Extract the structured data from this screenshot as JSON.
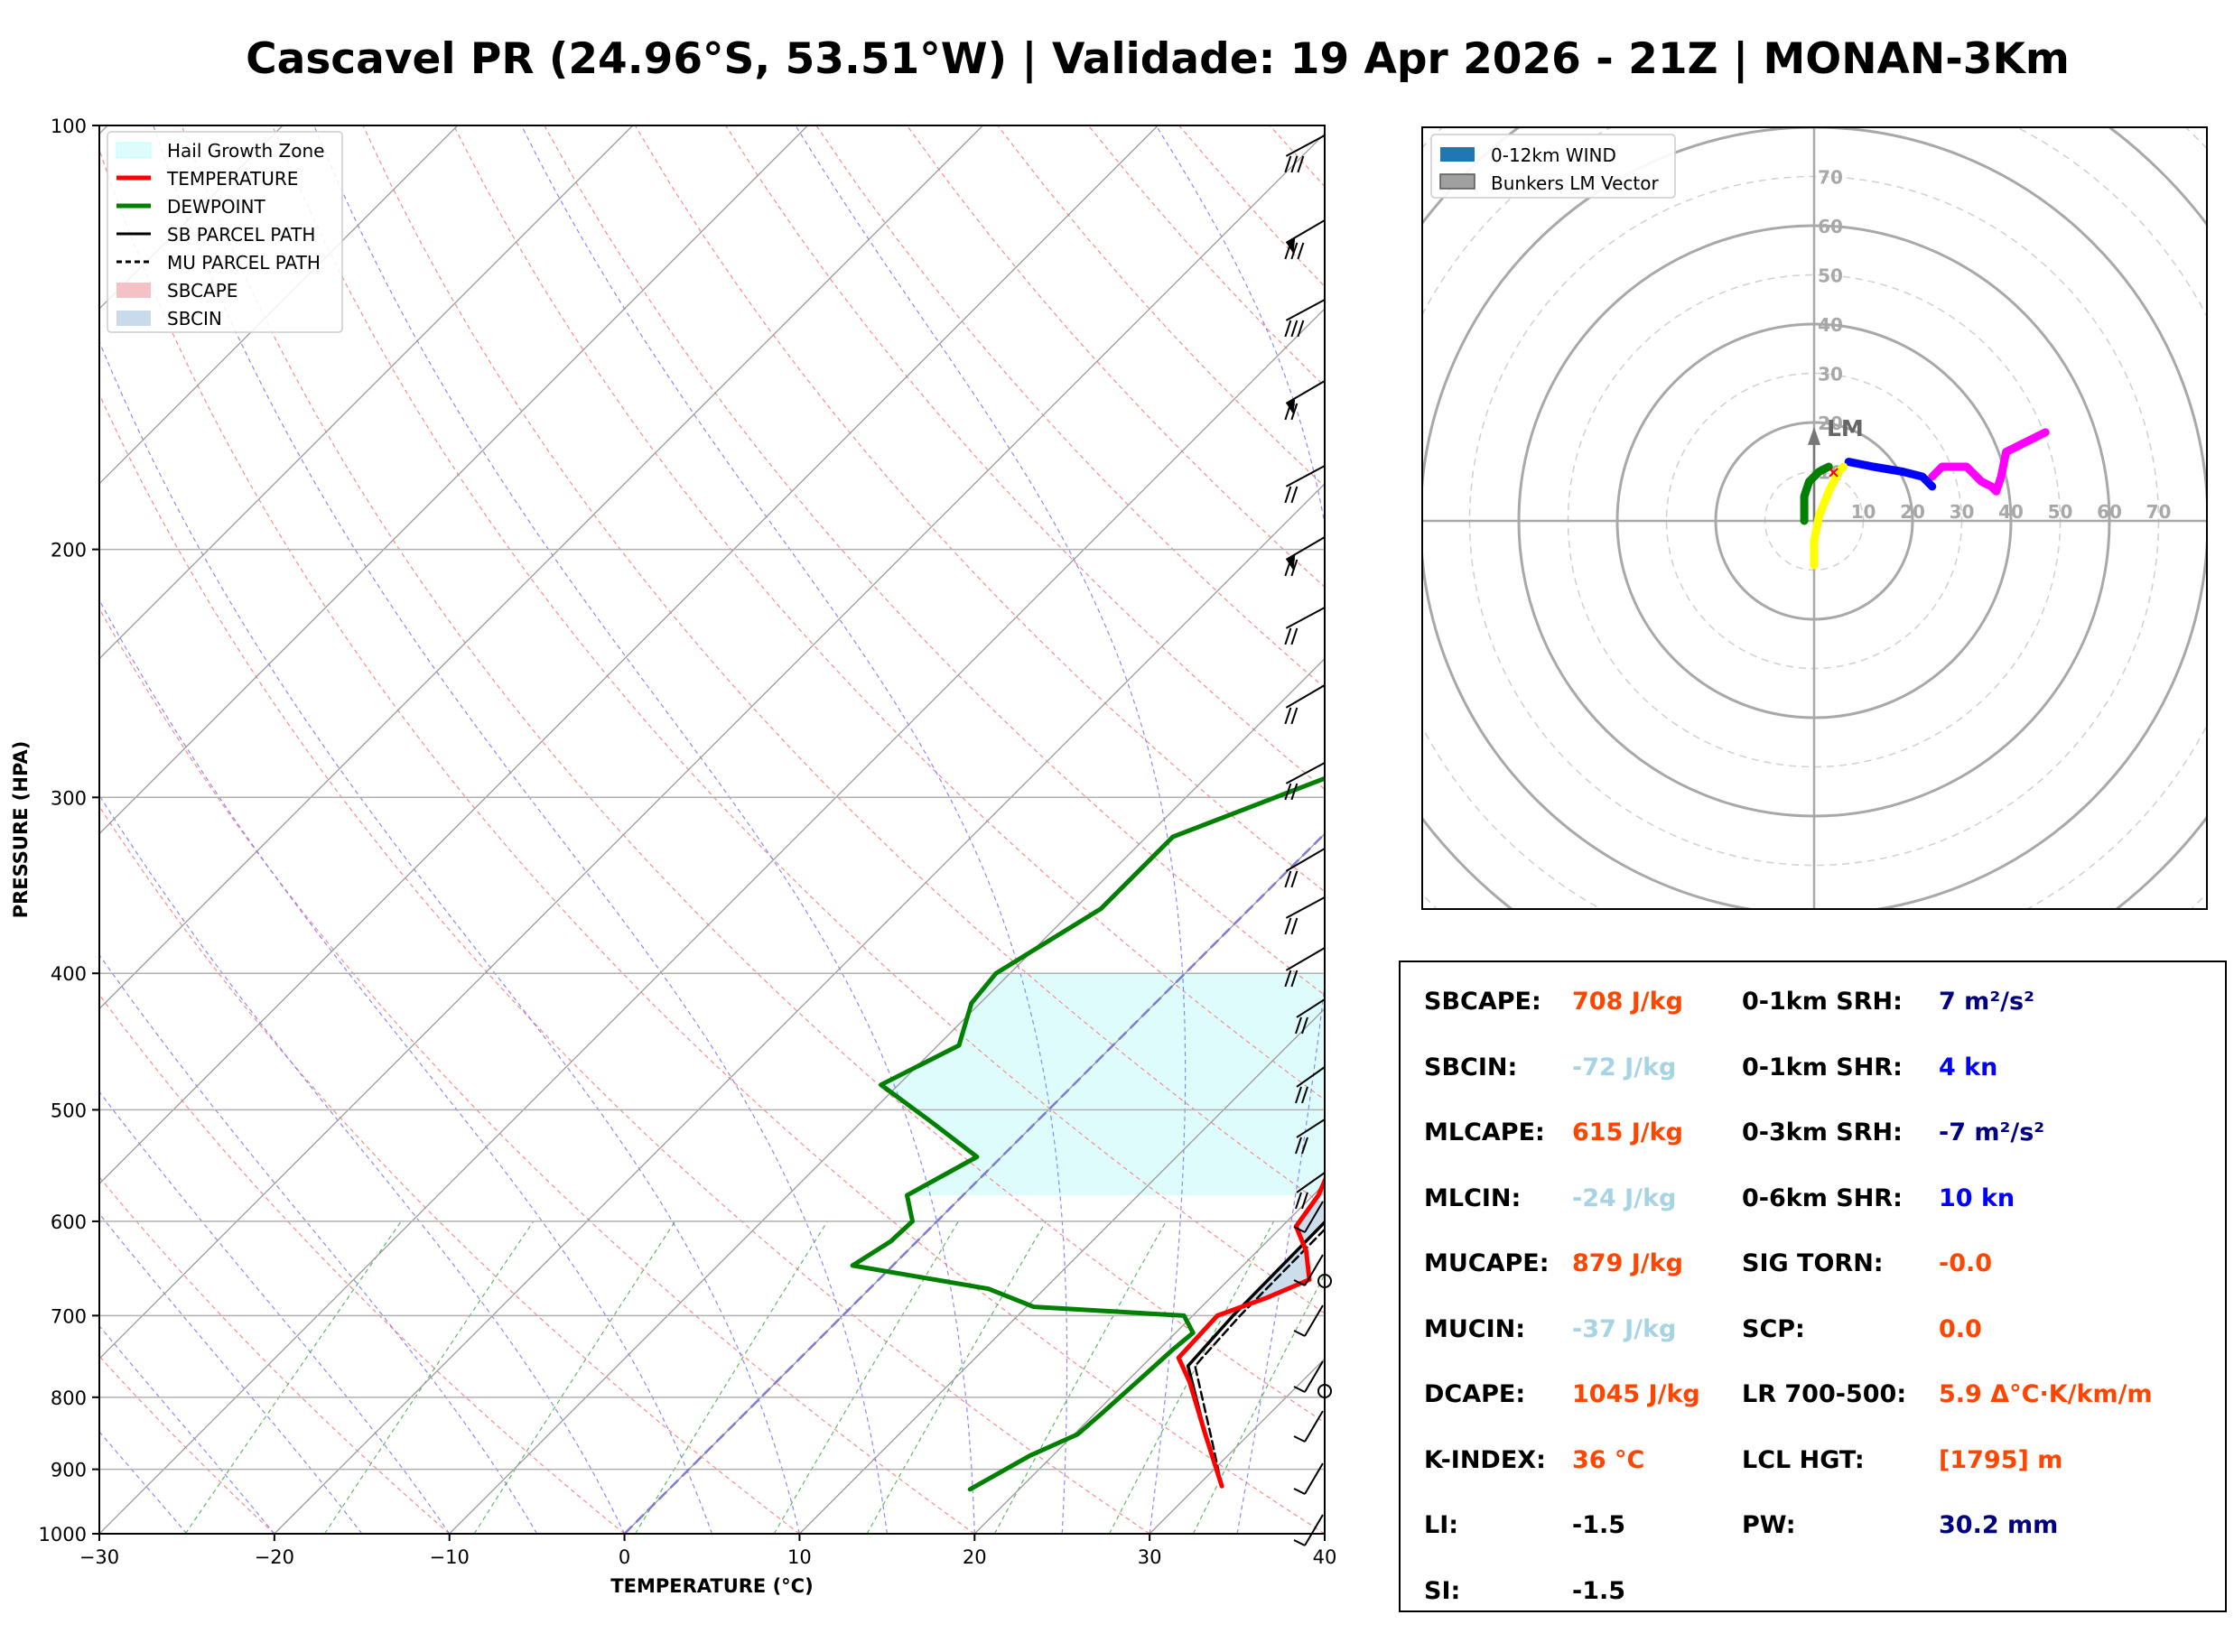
{
  "title": "Cascavel PR (24.96°S, 53.51°W) | Validade: 19 Apr 2026 - 21Z | MONAN-3Km",
  "colors": {
    "temperature": "#ff0000",
    "dewpoint": "#008000",
    "sbcape": "#f4c2c6",
    "sbcin": "#c9dbea",
    "hail": "#dffcfc",
    "value_orange": "#ff4500",
    "value_lightblue": "#a6d4e6",
    "value_navy": "#000080",
    "value_blue": "#0000ff"
  },
  "chart_data": [
    {
      "type": "skew-t",
      "xlabel": "TEMPERATURE (°C)",
      "ylabel": "PRESSURE (HPA)",
      "xlim": [
        -30,
        40
      ],
      "ylim": [
        1000,
        100
      ],
      "x_ticks": [
        "−30",
        "−20",
        "−10",
        "0",
        "10",
        "20",
        "30",
        "40"
      ],
      "y_ticks": [
        "100",
        "200",
        "300",
        "400",
        "500",
        "600",
        "700",
        "800",
        "900",
        "1000"
      ],
      "legend": {
        "placement": "top-left",
        "entries": [
          "Hail Growth Zone",
          "TEMPERATURE",
          "DEWPOINT",
          "SB PARCEL PATH",
          "MU PARCEL PATH",
          "SBCAPE",
          "SBCIN"
        ]
      },
      "series": [
        {
          "name": "TEMPERATURE",
          "points": [
            [
              925,
              31.4
            ],
            [
              850,
              27.5
            ],
            [
              780,
              23.6
            ],
            [
              750,
              21.6
            ],
            [
              700,
              21.4
            ],
            [
              680,
              23.2
            ],
            [
              660,
              24.6
            ],
            [
              630,
              22.8
            ],
            [
              605,
              20.8
            ],
            [
              575,
              20.3
            ],
            [
              530,
              18.7
            ],
            [
              500,
              17.8
            ],
            [
              470,
              16.3
            ],
            [
              440,
              15.0
            ],
            [
              410,
              14.0
            ],
            [
              400,
              13.6
            ],
            [
              350,
              11.4
            ],
            [
              300,
              8.8
            ],
            [
              260,
              6.0
            ],
            [
              240,
              4.8
            ],
            [
              220,
              3.8
            ],
            [
              200,
              1.9
            ],
            [
              180,
              -1.4
            ],
            [
              160,
              -3.8
            ],
            [
              140,
              -5.8
            ],
            [
              125,
              -7.6
            ],
            [
              110,
              -8.2
            ],
            [
              100,
              -8.2
            ]
          ]
        },
        {
          "name": "DEWPOINT",
          "points": [
            [
              930,
              17.2
            ],
            [
              880,
              18.7
            ],
            [
              850,
              20.2
            ],
            [
              820,
              20.4
            ],
            [
              780,
              20.6
            ],
            [
              740,
              20.8
            ],
            [
              720,
              21.0
            ],
            [
              700,
              19.5
            ],
            [
              690,
              10.4
            ],
            [
              670,
              6.8
            ],
            [
              645,
              -2.3
            ],
            [
              620,
              -1.5
            ],
            [
              600,
              -1.4
            ],
            [
              575,
              -3.2
            ],
            [
              540,
              -1.4
            ],
            [
              510,
              -6.0
            ],
            [
              480,
              -11.0
            ],
            [
              450,
              -8.8
            ],
            [
              420,
              -10.5
            ],
            [
              400,
              -10.8
            ],
            [
              360,
              -8.5
            ],
            [
              320,
              -8.5
            ],
            [
              290,
              -3.0
            ],
            [
              265,
              2.0
            ],
            [
              215,
              -2.7
            ],
            [
              195,
              -3.0
            ],
            [
              170,
              -6.0
            ],
            [
              150,
              -8.0
            ],
            [
              120,
              -9.4
            ],
            [
              100,
              -9.4
            ]
          ]
        },
        {
          "name": "SB PARCEL PATH",
          "points": [
            [
              925,
              31.4
            ],
            [
              850,
              27.5
            ],
            [
              760,
              22.6
            ],
            [
              700,
              22.3
            ],
            [
              600,
              22.2
            ],
            [
              500,
              21.7
            ],
            [
              450,
              21.0
            ],
            [
              400,
              19.2
            ],
            [
              350,
              16.8
            ],
            [
              300,
              13.6
            ],
            [
              250,
              9.0
            ],
            [
              220,
              5.6
            ],
            [
              180,
              0.5
            ],
            [
              150,
              -4.0
            ],
            [
              120,
              -10.2
            ],
            [
              100,
              -14.7
            ]
          ]
        },
        {
          "name": "MU PARCEL PATH",
          "points": [
            [
              925,
              31.4
            ],
            [
              850,
              27.8
            ],
            [
              760,
              23.0
            ],
            [
              700,
              22.7
            ],
            [
              600,
              22.6
            ],
            [
              500,
              22.2
            ],
            [
              450,
              21.5
            ],
            [
              400,
              19.8
            ],
            [
              350,
              17.4
            ],
            [
              300,
              14.3
            ],
            [
              250,
              9.8
            ],
            [
              220,
              6.4
            ],
            [
              180,
              1.2
            ],
            [
              150,
              -3.4
            ],
            [
              120,
              -9.7
            ],
            [
              100,
              -14.2
            ]
          ]
        }
      ],
      "hail_growth_zone": {
        "bottom_hpa": 575,
        "top_hpa": 400
      }
    },
    {
      "type": "hodograph",
      "legend": {
        "placement": "top-left",
        "entries": [
          "0-12km WIND",
          "Bunkers LM Vector"
        ]
      },
      "ring_labels": [
        "10",
        "20",
        "30",
        "40",
        "50",
        "60",
        "70"
      ],
      "vector_label": "LM",
      "bunkers_lm_vector": [
        0,
        18
      ],
      "series": [
        {
          "name": "low-level",
          "color": "#ffff00",
          "points": [
            [
              0,
              -9
            ],
            [
              0,
              -4
            ],
            [
              1,
              1
            ],
            [
              3,
              6
            ],
            [
              5,
              10
            ],
            [
              6,
              11
            ]
          ]
        },
        {
          "name": "0-3km",
          "color": "#008000",
          "points": [
            [
              -2,
              0
            ],
            [
              -2,
              5
            ],
            [
              -1,
              8
            ],
            [
              1,
              10
            ],
            [
              3,
              11
            ]
          ]
        },
        {
          "name": "mid-level",
          "color": "#0000ff",
          "points": [
            [
              7,
              12
            ],
            [
              12,
              11
            ],
            [
              18,
              10
            ],
            [
              22,
              9
            ],
            [
              24,
              7
            ]
          ]
        },
        {
          "name": "upper-level",
          "color": "#ff00ff",
          "points": [
            [
              24,
              9
            ],
            [
              26,
              11
            ],
            [
              29,
              11
            ],
            [
              31,
              11
            ],
            [
              34,
              8
            ],
            [
              36,
              7
            ],
            [
              37,
              6
            ],
            [
              38,
              9
            ],
            [
              39,
              14
            ],
            [
              43,
              16
            ],
            [
              47,
              18
            ]
          ]
        }
      ]
    }
  ],
  "stats": [
    {
      "label": "SBCAPE:",
      "value": "708 J/kg",
      "color": "#ff4500"
    },
    {
      "label": "SBCIN:",
      "value": "-72 J/kg",
      "color": "#a6d4e6"
    },
    {
      "label": "MLCAPE:",
      "value": "615 J/kg",
      "color": "#ff4500"
    },
    {
      "label": "MLCIN:",
      "value": "-24 J/kg",
      "color": "#a6d4e6"
    },
    {
      "label": "MUCAPE:",
      "value": "879 J/kg",
      "color": "#ff4500"
    },
    {
      "label": "MUCIN:",
      "value": "-37 J/kg",
      "color": "#a6d4e6"
    },
    {
      "label": "DCAPE:",
      "value": "1045 J/kg",
      "color": "#ff4500"
    },
    {
      "label": "K-INDEX:",
      "value": "36 °C",
      "color": "#ff4500"
    },
    {
      "label": "LI:",
      "value": "-1.5",
      "color": "#000000"
    },
    {
      "label": "SI:",
      "value": "-1.5",
      "color": "#000000"
    },
    {
      "label": "0-1km SRH:",
      "value": "7 m²/s²",
      "color": "#000080"
    },
    {
      "label": "0-1km SHR:",
      "value": "4 kn",
      "color": "#0000ff"
    },
    {
      "label": "0-3km SRH:",
      "value": "-7 m²/s²",
      "color": "#000080"
    },
    {
      "label": "0-6km SHR:",
      "value": "10 kn",
      "color": "#0000ff"
    },
    {
      "label": "SIG TORN:",
      "value": "-0.0",
      "color": "#ff4500"
    },
    {
      "label": "SCP:",
      "value": "0.0",
      "color": "#ff4500"
    },
    {
      "label": "LR 700-500:",
      "value": "5.9 Δ°C·K/km/m",
      "color": "#ff4500"
    },
    {
      "label": "LCL HGT:",
      "value": "[1795] m",
      "color": "#ff4500"
    },
    {
      "label": "PW:",
      "value": "30.2 mm",
      "color": "#000080"
    }
  ]
}
